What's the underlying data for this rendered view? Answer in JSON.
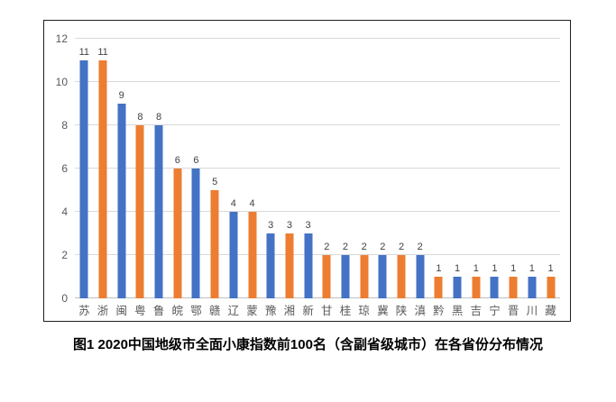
{
  "figure_caption": "图1 2020中国地级市全面小康指数前100名（含副省级城市）在各省份分布情况",
  "colors": {
    "bar_blue": "#4472C4",
    "bar_orange": "#ED7D31",
    "gridline": "#D9D9D9",
    "axis_line": "#BFBFBF",
    "tick_text": "#595959",
    "value_text": "#404040",
    "frame_border": "#1F1F1F",
    "background": "#FFFFFF"
  },
  "chart_data": {
    "type": "bar",
    "title": "",
    "xlabel": "",
    "ylabel": "",
    "categories": [
      "苏",
      "浙",
      "闽",
      "粤",
      "鲁",
      "皖",
      "鄂",
      "赣",
      "辽",
      "蒙",
      "豫",
      "湘",
      "新",
      "甘",
      "桂",
      "琼",
      "冀",
      "陕",
      "滇",
      "黔",
      "黑",
      "吉",
      "宁",
      "晋",
      "川",
      "藏"
    ],
    "values": [
      11,
      11,
      9,
      8,
      8,
      6,
      6,
      5,
      4,
      4,
      3,
      3,
      3,
      2,
      2,
      2,
      2,
      2,
      2,
      1,
      1,
      1,
      1,
      1,
      1,
      1
    ],
    "bar_colors_alternate": [
      "#4472C4",
      "#ED7D31"
    ],
    "ylim": [
      0,
      12
    ],
    "yticks": [
      0,
      2,
      4,
      6,
      8,
      10,
      12
    ],
    "grid": true,
    "legend_position": "none",
    "value_labels": true
  }
}
